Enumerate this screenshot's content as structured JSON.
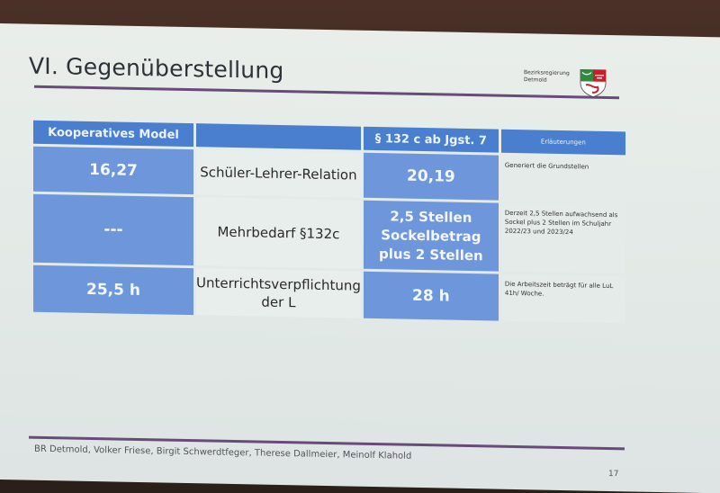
{
  "slide": {
    "title": "VI. Gegenüberstellung",
    "org_line1": "Bezirksregierung",
    "org_line2": "Detmold",
    "footer": "BR Detmold, Volker Friese, Birgit Schwerdtfeger, Therese Dallmeier, Meinolf Klahold",
    "page_number": "17"
  },
  "table": {
    "headers": [
      "Kooperatives Model",
      "",
      "§ 132 c ab Jgst. 7",
      "Erläuterungen"
    ],
    "rows": [
      {
        "left": "16,27",
        "label": "Schüler-Lehrer-Relation",
        "right": "20,19",
        "note": "Generiert die Grundstellen"
      },
      {
        "left": "---",
        "label": "Mehrbedarf §132c",
        "right": "2,5 Stellen Sockelbetrag plus 2 Stellen",
        "note": "Derzeit 2,5 Stellen aufwachsend als Sockel plus 2 Stellen im Schuljahr 2022/23 und 2023/24"
      },
      {
        "left": "25,5 h",
        "label": "Unterrichtsverpflichtung der L",
        "right": "28 h",
        "note": "Die Arbeitszeit beträgt für alle LuL 41h/ Woche."
      }
    ]
  }
}
